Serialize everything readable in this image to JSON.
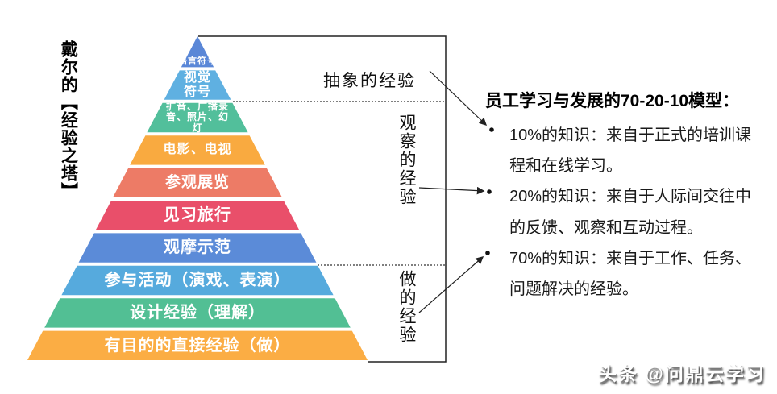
{
  "left_title": "戴尔的【经验之塔】",
  "pyramid": {
    "layers": [
      {
        "label": "语言符号",
        "lines": [
          "语言符号"
        ],
        "color": "#5a87d7",
        "font_size": 11,
        "align": "bottom"
      },
      {
        "label": "视觉符号",
        "lines": [
          "视觉",
          "符号"
        ],
        "color": "#5fb0e1",
        "font_size": 16
      },
      {
        "label": "扩音、广播录音、照片、幻灯",
        "lines": [
          "扩音、广播录",
          "音、照片、幻",
          "灯"
        ],
        "color": "#52bf9b",
        "font_size": 12
      },
      {
        "label": "电影、电视",
        "lines": [
          "电影、电视"
        ],
        "color": "#f9aa40",
        "font_size": 16
      },
      {
        "label": "参观展览",
        "lines": [
          "参观展览"
        ],
        "color": "#ed7b66",
        "font_size": 19
      },
      {
        "label": "见习旅行",
        "lines": [
          "见习旅行"
        ],
        "color": "#e94f6a",
        "font_size": 20
      },
      {
        "label": "观摩示范",
        "lines": [
          "观摩示范"
        ],
        "color": "#5b8bd8",
        "font_size": 20
      },
      {
        "label": "参与活动（演戏、表演）",
        "lines": [
          "参与活动（演戏、表演）"
        ],
        "color": "#56aadd",
        "font_size": 20
      },
      {
        "label": "设计经验（理解）",
        "lines": [
          "设计经验（理解）"
        ],
        "color": "#52bf94",
        "font_size": 20
      },
      {
        "label": "有目的的直接经验（做）",
        "lines": [
          "有目的的直接经验（做）"
        ],
        "color": "#fbad44",
        "font_size": 20
      }
    ]
  },
  "sections": [
    {
      "label": "抽象的经验"
    },
    {
      "label": "观察的经验"
    },
    {
      "label": "做的经验"
    }
  ],
  "right_panel": {
    "title": "员工学习与发展的70-20-10模型：",
    "bullets": [
      {
        "label": "10%的知识：来自于正式的培训课程和在线学习。",
        "lines": [
          "10%的知识：来自于正式的培训课",
          "程和在线学习。"
        ]
      },
      {
        "label": "20%的知识：来自于人际间交往中的反馈、观察和互动过程。",
        "lines": [
          "20%的知识：来自于人际间交往中",
          "的反馈、观察和互动过程。"
        ]
      },
      {
        "label": "70%的知识：来自于工作、任务、问题解决的经验。",
        "lines": [
          "70%的知识：来自于工作、任务、",
          "问题解决的经验。"
        ]
      }
    ]
  },
  "watermark": "头条 @问鼎云学习",
  "colors": {
    "line": "#222222",
    "dotted": "#333333",
    "band_text": "#ffffff"
  }
}
